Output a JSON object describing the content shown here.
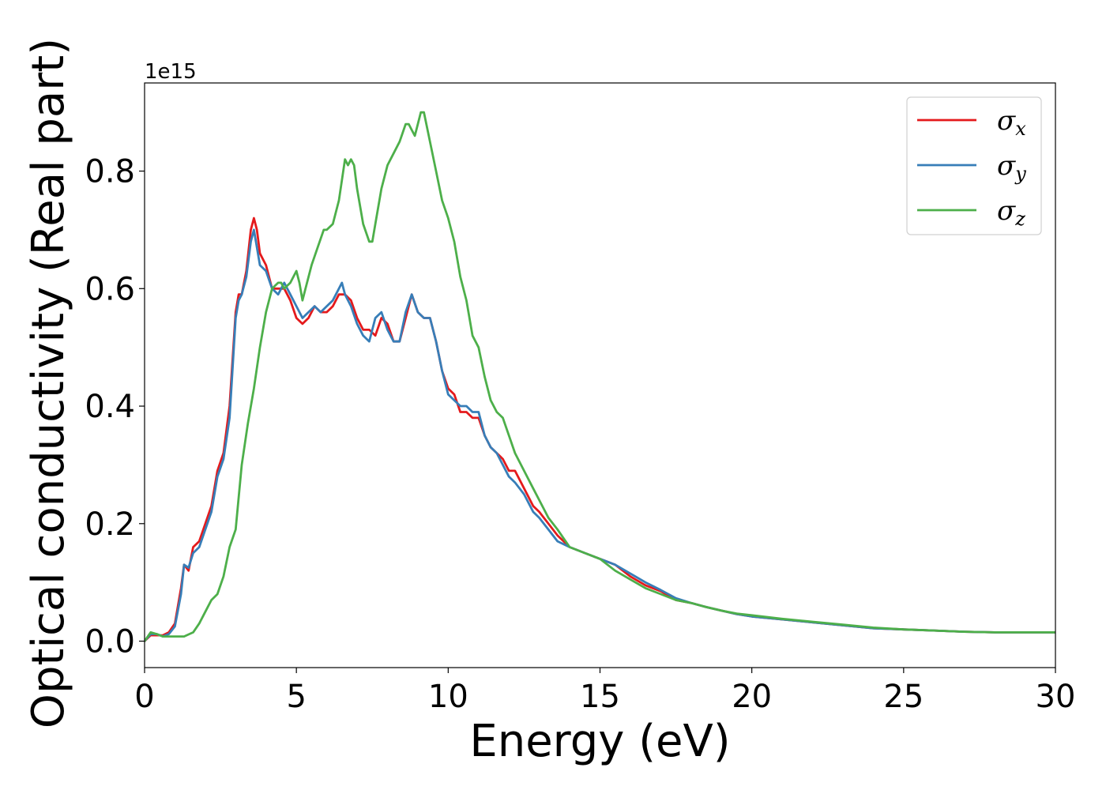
{
  "chart_data": {
    "type": "line",
    "xlabel": "Energy (eV)",
    "ylabel": "Optical conductivity (Real part)",
    "y_offset_label": "1e15",
    "xlim": [
      0,
      30
    ],
    "ylim": [
      -0.045,
      0.95
    ],
    "x_ticks": [
      0,
      5,
      10,
      15,
      20,
      25,
      30
    ],
    "y_ticks": [
      0.0,
      0.2,
      0.4,
      0.6,
      0.8
    ],
    "x_tick_labels": [
      "0",
      "5",
      "10",
      "15",
      "20",
      "25",
      "30"
    ],
    "y_tick_labels": [
      "0.0",
      "0.2",
      "0.4",
      "0.6",
      "0.8"
    ],
    "grid": false,
    "legend_position": "top-right",
    "series": [
      {
        "name": "σx",
        "subscript": "x",
        "color": "#e41a1c",
        "x": [
          0,
          0.2,
          0.4,
          0.6,
          0.8,
          1.0,
          1.2,
          1.3,
          1.45,
          1.6,
          1.8,
          2.0,
          2.2,
          2.4,
          2.6,
          2.8,
          3.0,
          3.1,
          3.2,
          3.35,
          3.5,
          3.6,
          3.7,
          3.8,
          4.0,
          4.2,
          4.4,
          4.6,
          4.8,
          5.0,
          5.2,
          5.4,
          5.6,
          5.8,
          6.0,
          6.2,
          6.4,
          6.5,
          6.6,
          6.8,
          7.0,
          7.2,
          7.4,
          7.6,
          7.8,
          8.0,
          8.2,
          8.4,
          8.6,
          8.8,
          9.0,
          9.2,
          9.4,
          9.6,
          9.8,
          10.0,
          10.2,
          10.4,
          10.6,
          10.8,
          11.0,
          11.2,
          11.4,
          11.6,
          11.8,
          12.0,
          12.2,
          12.5,
          12.8,
          13.0,
          13.3,
          13.6,
          14.0,
          14.5,
          15.0,
          15.5,
          16.0,
          16.5,
          17.0,
          17.5,
          18.0,
          18.5,
          19.0,
          19.5,
          20.0,
          21.0,
          22.0,
          23.0,
          24.0,
          25.0,
          26.0,
          27.0,
          28.0,
          29.0,
          30.0
        ],
        "values": [
          0.0,
          0.01,
          0.01,
          0.01,
          0.015,
          0.03,
          0.09,
          0.13,
          0.12,
          0.16,
          0.17,
          0.2,
          0.23,
          0.29,
          0.32,
          0.4,
          0.56,
          0.59,
          0.59,
          0.63,
          0.7,
          0.72,
          0.7,
          0.66,
          0.64,
          0.6,
          0.6,
          0.6,
          0.58,
          0.55,
          0.54,
          0.55,
          0.57,
          0.56,
          0.56,
          0.57,
          0.59,
          0.59,
          0.59,
          0.58,
          0.55,
          0.53,
          0.53,
          0.52,
          0.55,
          0.54,
          0.51,
          0.51,
          0.55,
          0.59,
          0.56,
          0.55,
          0.55,
          0.51,
          0.46,
          0.43,
          0.42,
          0.39,
          0.39,
          0.38,
          0.38,
          0.35,
          0.33,
          0.32,
          0.31,
          0.29,
          0.29,
          0.26,
          0.23,
          0.22,
          0.2,
          0.18,
          0.16,
          0.15,
          0.14,
          0.13,
          0.11,
          0.095,
          0.085,
          0.07,
          0.065,
          0.058,
          0.052,
          0.046,
          0.042,
          0.037,
          0.032,
          0.027,
          0.022,
          0.02,
          0.018,
          0.016,
          0.015,
          0.015,
          0.015
        ]
      },
      {
        "name": "σy",
        "subscript": "y",
        "color": "#377eb8",
        "x": [
          0,
          0.2,
          0.4,
          0.6,
          0.8,
          1.0,
          1.2,
          1.3,
          1.45,
          1.6,
          1.8,
          2.0,
          2.2,
          2.4,
          2.6,
          2.8,
          3.0,
          3.1,
          3.2,
          3.35,
          3.5,
          3.6,
          3.7,
          3.8,
          4.0,
          4.2,
          4.4,
          4.6,
          4.8,
          5.0,
          5.2,
          5.4,
          5.6,
          5.8,
          6.0,
          6.2,
          6.4,
          6.5,
          6.6,
          6.8,
          7.0,
          7.2,
          7.4,
          7.6,
          7.8,
          8.0,
          8.2,
          8.4,
          8.6,
          8.8,
          9.0,
          9.2,
          9.4,
          9.6,
          9.8,
          10.0,
          10.2,
          10.4,
          10.6,
          10.8,
          11.0,
          11.2,
          11.4,
          11.6,
          11.8,
          12.0,
          12.2,
          12.5,
          12.8,
          13.0,
          13.3,
          13.6,
          14.0,
          14.5,
          15.0,
          15.5,
          16.0,
          16.5,
          17.0,
          17.5,
          18.0,
          18.5,
          19.0,
          19.5,
          20.0,
          21.0,
          22.0,
          23.0,
          24.0,
          25.0,
          26.0,
          27.0,
          28.0,
          29.0,
          30.0
        ],
        "values": [
          0.0,
          0.012,
          0.012,
          0.008,
          0.012,
          0.025,
          0.08,
          0.13,
          0.125,
          0.15,
          0.16,
          0.19,
          0.22,
          0.28,
          0.31,
          0.38,
          0.55,
          0.58,
          0.59,
          0.62,
          0.68,
          0.7,
          0.67,
          0.64,
          0.63,
          0.6,
          0.59,
          0.61,
          0.59,
          0.57,
          0.55,
          0.56,
          0.57,
          0.56,
          0.57,
          0.58,
          0.6,
          0.61,
          0.59,
          0.57,
          0.54,
          0.52,
          0.51,
          0.55,
          0.56,
          0.53,
          0.51,
          0.51,
          0.56,
          0.59,
          0.56,
          0.55,
          0.55,
          0.51,
          0.46,
          0.42,
          0.41,
          0.4,
          0.4,
          0.39,
          0.39,
          0.35,
          0.33,
          0.32,
          0.3,
          0.28,
          0.27,
          0.25,
          0.22,
          0.21,
          0.19,
          0.17,
          0.16,
          0.15,
          0.14,
          0.13,
          0.115,
          0.1,
          0.087,
          0.073,
          0.065,
          0.058,
          0.052,
          0.046,
          0.042,
          0.037,
          0.032,
          0.027,
          0.022,
          0.02,
          0.018,
          0.016,
          0.015,
          0.015,
          0.015
        ]
      },
      {
        "name": "σz",
        "subscript": "z",
        "color": "#4daf4a",
        "x": [
          0,
          0.2,
          0.4,
          0.6,
          0.8,
          1.0,
          1.3,
          1.6,
          1.8,
          2.0,
          2.2,
          2.4,
          2.6,
          2.8,
          3.0,
          3.2,
          3.4,
          3.6,
          3.8,
          4.0,
          4.2,
          4.4,
          4.5,
          4.6,
          4.8,
          5.0,
          5.1,
          5.2,
          5.3,
          5.5,
          5.7,
          5.9,
          6.0,
          6.2,
          6.4,
          6.6,
          6.7,
          6.8,
          6.9,
          7.0,
          7.2,
          7.4,
          7.5,
          7.6,
          7.8,
          8.0,
          8.2,
          8.4,
          8.6,
          8.7,
          8.8,
          8.9,
          9.0,
          9.1,
          9.2,
          9.4,
          9.6,
          9.8,
          10.0,
          10.2,
          10.4,
          10.6,
          10.8,
          11.0,
          11.2,
          11.4,
          11.6,
          11.8,
          12.0,
          12.2,
          12.5,
          12.8,
          13.0,
          13.3,
          13.6,
          14.0,
          14.5,
          15.0,
          15.5,
          16.0,
          16.5,
          17.0,
          17.5,
          18.0,
          18.5,
          19.0,
          19.5,
          20.0,
          21.0,
          22.0,
          23.0,
          24.0,
          25.0,
          26.0,
          27.0,
          28.0,
          29.0,
          30.0
        ],
        "values": [
          0.0,
          0.015,
          0.012,
          0.008,
          0.008,
          0.008,
          0.008,
          0.015,
          0.03,
          0.05,
          0.07,
          0.08,
          0.11,
          0.16,
          0.19,
          0.3,
          0.37,
          0.43,
          0.5,
          0.56,
          0.6,
          0.61,
          0.61,
          0.6,
          0.61,
          0.63,
          0.61,
          0.58,
          0.6,
          0.64,
          0.67,
          0.7,
          0.7,
          0.71,
          0.75,
          0.82,
          0.81,
          0.82,
          0.81,
          0.77,
          0.71,
          0.68,
          0.68,
          0.71,
          0.77,
          0.81,
          0.83,
          0.85,
          0.88,
          0.88,
          0.87,
          0.86,
          0.88,
          0.9,
          0.9,
          0.85,
          0.8,
          0.75,
          0.72,
          0.68,
          0.62,
          0.58,
          0.52,
          0.5,
          0.45,
          0.41,
          0.39,
          0.38,
          0.35,
          0.32,
          0.29,
          0.26,
          0.24,
          0.21,
          0.19,
          0.16,
          0.15,
          0.14,
          0.12,
          0.105,
          0.09,
          0.08,
          0.07,
          0.065,
          0.058,
          0.052,
          0.047,
          0.044,
          0.038,
          0.033,
          0.028,
          0.023,
          0.02,
          0.018,
          0.016,
          0.015,
          0.015,
          0.015
        ]
      }
    ]
  }
}
